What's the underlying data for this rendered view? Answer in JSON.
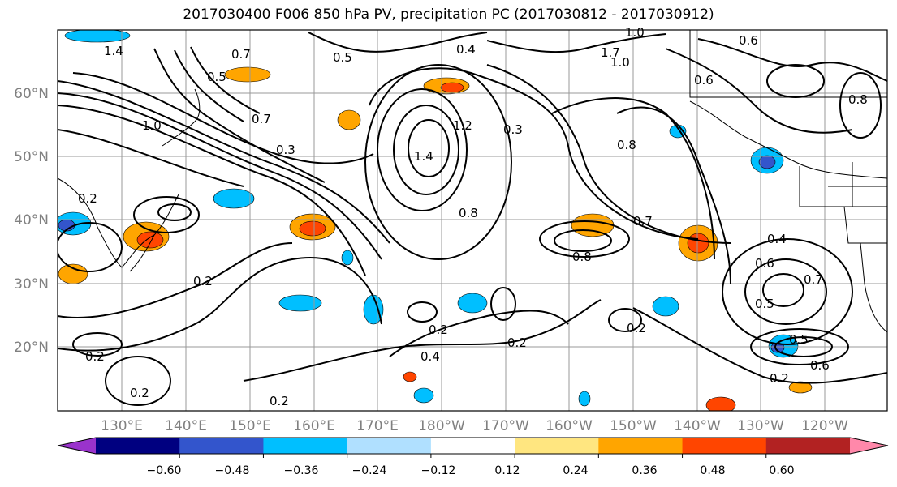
{
  "title": "2017030400 F006 850 hPa PV, precipitation PC (2017030812 - 2017030912)",
  "lat_labels": [
    "60°N",
    "50°N",
    "40°N",
    "30°N",
    "20°N"
  ],
  "lon_labels": [
    "130°E",
    "140°E",
    "150°E",
    "160°E",
    "170°E",
    "180°W",
    "170°W",
    "160°W",
    "150°W",
    "140°W",
    "130°W",
    "120°W"
  ],
  "contour_labels": [
    "1.4",
    "0.5",
    "0.7",
    "0.5",
    "1.0",
    "0.4",
    "1.7",
    "1.0",
    "0.6",
    "0.7",
    "1.0",
    "0.3",
    "1.4",
    "1.2",
    "0.8",
    "0.3",
    "0.2",
    "0.2",
    "0.7",
    "0.4",
    "0.6",
    "0.8",
    "0.5",
    "0.8",
    "0.2",
    "0.2",
    "0.2",
    "0.2",
    "0.2",
    "0.4",
    "0.2",
    "0.5",
    "0.6",
    "0.8",
    "0.7",
    "0.6",
    "0.2"
  ],
  "colorbar": {
    "ticks": [
      "−0.60",
      "−0.48",
      "−0.36",
      "−0.24",
      "−0.12",
      "0.12",
      "0.24",
      "0.36",
      "0.48",
      "0.60"
    ],
    "colors": [
      "#9a33cc",
      "#000080",
      "#3355cc",
      "#00bfff",
      "#b0e0ff",
      "#ffffff",
      "#ffe680",
      "#ffa500",
      "#ff4500",
      "#b22222",
      "#ff88aa"
    ]
  }
}
